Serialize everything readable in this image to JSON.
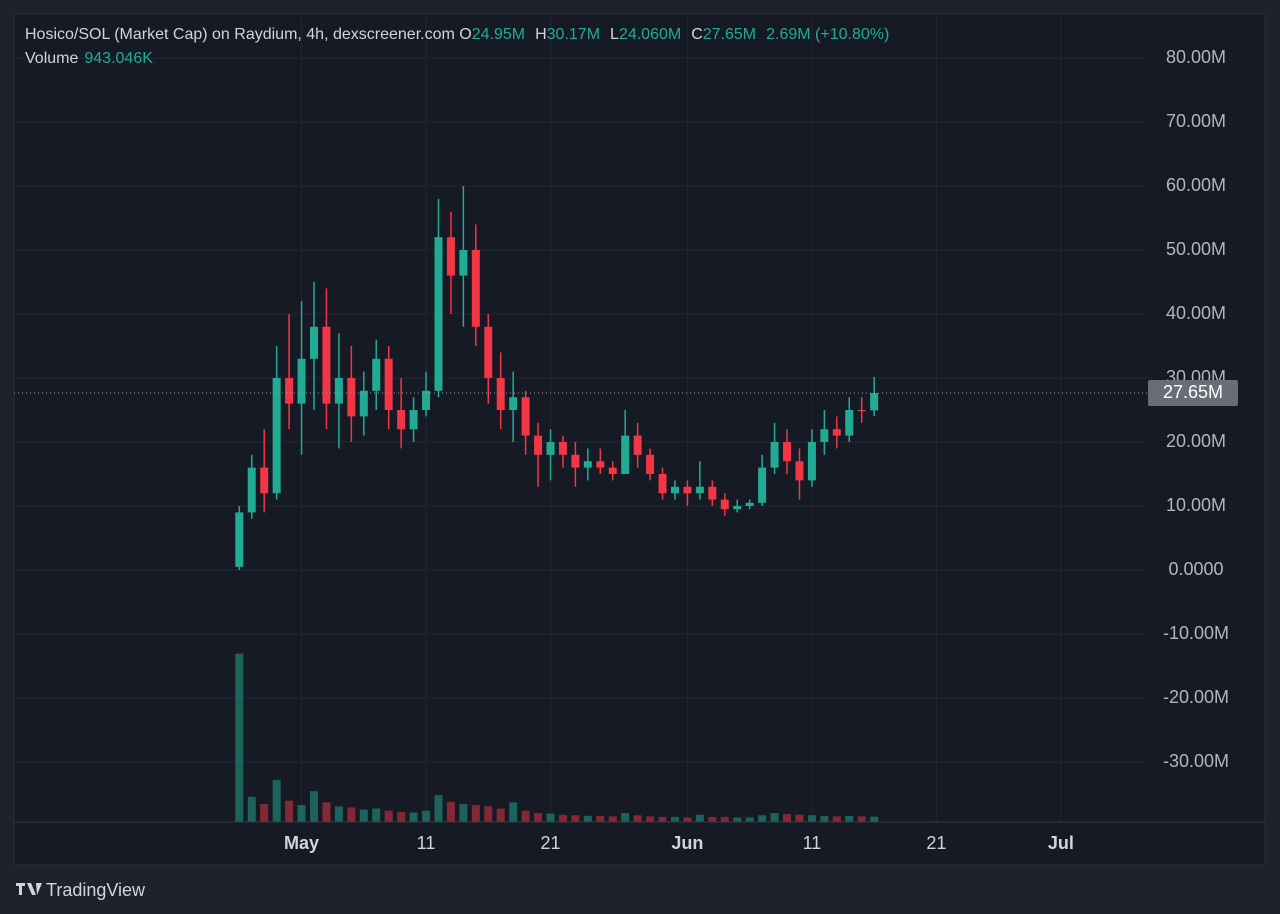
{
  "chart_data": {
    "type": "candlestick",
    "header": {
      "title": "Hosico/SOL (Market Cap) on Raydium, 4h, dexscreener.com",
      "o_label": "O",
      "o_value": "24.95M",
      "h_label": "H",
      "h_value": "30.17M",
      "l_label": "L",
      "l_value": "24.060M",
      "c_label": "C",
      "c_value": "27.65M",
      "change": "2.69M (+10.80%)",
      "volume_label": "Volume",
      "volume_value": "943.046K"
    },
    "brand": "TradingView",
    "up_color": "#22ab94",
    "down_color": "#f23645",
    "last_price": {
      "value": 27.65,
      "label": "27.65M"
    },
    "x": [
      117,
      118,
      119,
      120,
      121,
      122,
      123,
      124,
      125,
      126,
      127,
      128,
      129,
      130,
      131,
      132,
      133,
      134,
      135,
      136,
      137,
      138,
      139,
      140,
      141,
      142,
      143,
      144,
      145,
      146,
      147,
      148,
      149,
      150,
      151,
      152,
      153,
      154,
      155,
      156,
      157,
      158,
      159,
      160,
      161,
      162,
      163,
      164,
      165,
      166,
      167,
      168
    ],
    "open": [
      0.5,
      9,
      16,
      12,
      30,
      26,
      33,
      38,
      26,
      30,
      24,
      28,
      33,
      25,
      22,
      25,
      28,
      52,
      46,
      50,
      38,
      30,
      25,
      27,
      21,
      18,
      20,
      18,
      16,
      17,
      16,
      15,
      21,
      18,
      15,
      12,
      13,
      12,
      13,
      11,
      9.5,
      10,
      10.5,
      16,
      20,
      17,
      14,
      20,
      22,
      21,
      25,
      24.95
    ],
    "high": [
      10,
      18,
      22,
      35,
      40,
      42,
      45,
      44,
      37,
      35,
      31,
      36,
      35,
      30,
      27,
      31,
      58,
      56,
      60,
      54,
      40,
      34,
      31,
      28,
      23,
      22,
      21,
      20,
      19,
      19,
      17,
      25,
      23,
      19,
      16,
      14,
      14,
      17,
      14,
      12,
      11,
      11,
      18,
      23,
      22,
      19,
      22,
      25,
      24,
      27,
      27,
      30.17
    ],
    "low": [
      0,
      8,
      9,
      11,
      22,
      18,
      25,
      22,
      19,
      20,
      21,
      25,
      22,
      19,
      20,
      24,
      27,
      40,
      38,
      35,
      26,
      22,
      20,
      18,
      13,
      14,
      16,
      13,
      14,
      15,
      14,
      15,
      16,
      14,
      11,
      11,
      10,
      11,
      10,
      8.5,
      9,
      9.5,
      10,
      15,
      15,
      11,
      13,
      18,
      19,
      20,
      23,
      24.06
    ],
    "close": [
      9,
      16,
      12,
      30,
      26,
      33,
      38,
      26,
      30,
      24,
      28,
      33,
      25,
      22,
      25,
      28,
      52,
      46,
      50,
      38,
      30,
      25,
      27,
      21,
      18,
      20,
      18,
      16,
      17,
      16,
      15,
      21,
      18,
      15,
      12,
      13,
      12,
      13,
      11,
      9.5,
      10,
      10.5,
      16,
      20,
      17,
      14,
      20,
      22,
      21,
      25,
      24.95,
      27.65
    ],
    "volume": [
      30000,
      4500,
      3200,
      7500,
      3800,
      3000,
      5500,
      3500,
      2800,
      2600,
      2200,
      2400,
      2000,
      1800,
      1700,
      2000,
      4800,
      3600,
      3200,
      3000,
      2800,
      2400,
      3500,
      2000,
      1600,
      1500,
      1300,
      1200,
      1100,
      1100,
      1000,
      1600,
      1200,
      1000,
      900,
      900,
      800,
      1300,
      900,
      900,
      800,
      800,
      1200,
      1600,
      1400,
      1300,
      1200,
      1100,
      1000,
      1100,
      1000,
      943.046
    ],
    "xlim": [
      98.9,
      190
    ],
    "xticks": [
      {
        "value": 122,
        "label": "May"
      },
      {
        "value": 132,
        "label": "11"
      },
      {
        "value": 142,
        "label": "21"
      },
      {
        "value": 153,
        "label": "Jun"
      },
      {
        "value": 163,
        "label": "11"
      },
      {
        "value": 173,
        "label": "21"
      },
      {
        "value": 183,
        "label": "Jul"
      }
    ],
    "ylim": [
      -39.375,
      86.875
    ],
    "yticks": [
      {
        "value": 80,
        "label": "80.00M"
      },
      {
        "value": 70,
        "label": "70.00M"
      },
      {
        "value": 60,
        "label": "60.00M"
      },
      {
        "value": 50,
        "label": "50.00M"
      },
      {
        "value": 40,
        "label": "40.00M"
      },
      {
        "value": 30,
        "label": "30.00M"
      },
      {
        "value": 20,
        "label": "20.00M"
      },
      {
        "value": 10,
        "label": "10.00M"
      },
      {
        "value": 0,
        "label": "0.0000"
      },
      {
        "value": -10,
        "label": "-10.00M"
      },
      {
        "value": -20,
        "label": "-20.00M"
      },
      {
        "value": -30,
        "label": "-30.00M"
      }
    ],
    "y2lim": [
      0,
      36000
    ],
    "grid": true
  }
}
